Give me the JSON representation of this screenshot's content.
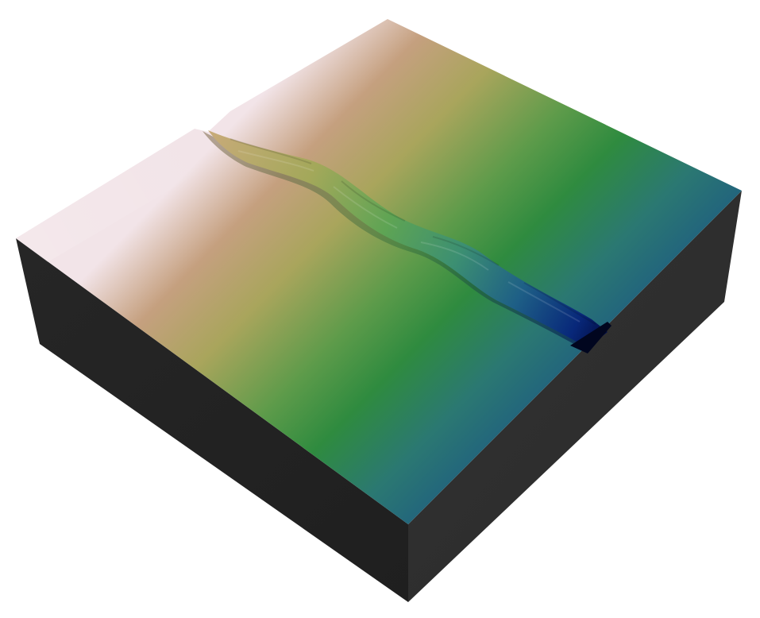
{
  "scene": {
    "subject": "terrain-block-with-channel",
    "background_color": "#ffffff",
    "side_colors": {
      "left_face": "#232323",
      "right_face": "#2f2f2f"
    },
    "elevation_colormap": [
      "#f4e6e8",
      "#c9a682",
      "#a8a65c",
      "#4a9a45",
      "#2f8a3e",
      "#2b7570",
      "#20617a",
      "#0d3f78",
      "#061a6a"
    ],
    "channel_colors": {
      "upper": "#b9a46a",
      "middle": "#4f9a6c",
      "lower": "#0a2a7a",
      "outlet": "#000a3a"
    }
  }
}
